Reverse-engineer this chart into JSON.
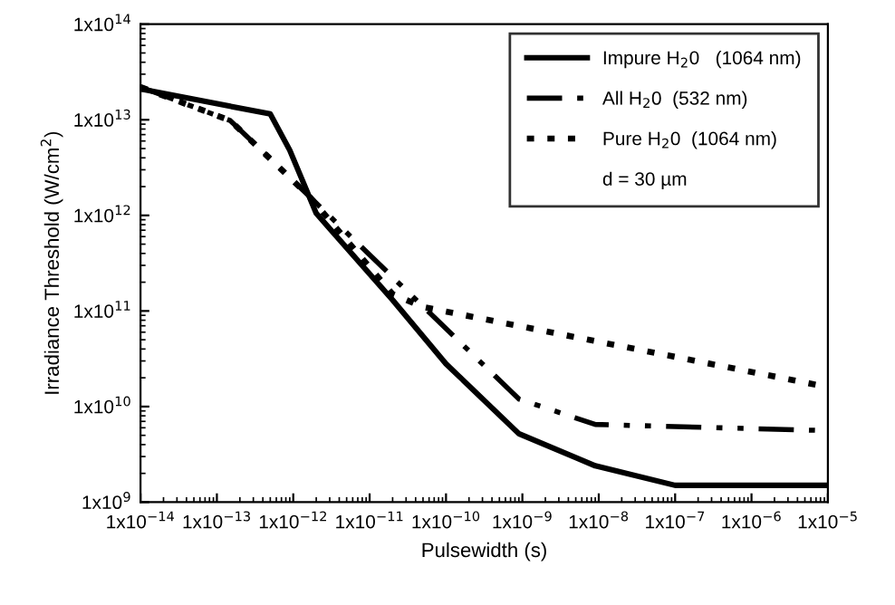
{
  "chart_data": {
    "type": "line",
    "xlabel": "Pulsewidth (s)",
    "ylabel": "Irradiance Threshold (W/cm$^{2}$)",
    "log": "xy",
    "grid": false,
    "legend": "top right",
    "marker": "none",
    "xlim": [
      1e-14,
      1e-05
    ],
    "xticks": [
      {
        "value": 1e-14,
        "label": "1x10$^{−14}$"
      },
      {
        "value": 1e-13,
        "label": "1x10$^{−13}$"
      },
      {
        "value": 1e-12,
        "label": "1x10$^{−12}$"
      },
      {
        "value": 1e-11,
        "label": "1x10$^{−11}$"
      },
      {
        "value": 1e-10,
        "label": "1x10$^{−10}$"
      },
      {
        "value": 1e-09,
        "label": "1x10$^{−9}$"
      },
      {
        "value": 1e-08,
        "label": "1x10$^{−8}$"
      },
      {
        "value": 1e-07,
        "label": "1x10$^{−7}$"
      },
      {
        "value": 1e-06,
        "label": "1x10$^{−6}$"
      },
      {
        "value": 1e-05,
        "label": "1x10$^{−5}$"
      }
    ],
    "ylim": [
      1000000000.0,
      100000000000000.0
    ],
    "yticks": [
      {
        "value": 1000000000.0,
        "label": "1x10$^{9}$"
      },
      {
        "value": 10000000000.0,
        "label": "1x10$^{10}$"
      },
      {
        "value": 100000000000.0,
        "label": "1x10$^{11}$"
      },
      {
        "value": 1000000000000.0,
        "label": "1x10$^{12}$"
      },
      {
        "value": 10000000000000.0,
        "label": "1x10$^{13}$"
      },
      {
        "value": 100000000000000.0,
        "label": "1x10$^{14}$"
      }
    ],
    "annotations": [
      "d = 30 µm"
    ],
    "series": [
      {
        "name": "Impure H$_{2}$0   (1064 nm)",
        "color": "#000000",
        "line_style": "solid",
        "x": [
          1e-14,
          5e-13,
          9e-13,
          2e-12,
          2e-11,
          1e-10,
          9e-10,
          9e-09,
          1e-07,
          1e-05
        ],
        "values": [
          21000000000000.0,
          11500000000000.0,
          4800000000000.0,
          1050000000000.0,
          130000000000.0,
          28000000000.0,
          5200000000.0,
          2400000000.0,
          1500000000.0,
          1500000000.0
        ]
      },
      {
        "name": "All H$_{2}$0  (532 nm)",
        "color": "#000000",
        "line_style": "dashdot",
        "x": [
          1e-14,
          1.5e-13,
          1.6e-12,
          2.5e-11,
          9e-10,
          9e-09,
          1e-05
        ],
        "values": [
          22000000000000.0,
          9800000000000.0,
          1600000000000.0,
          190000000000.0,
          12000000000.0,
          6500000000.0,
          5600000000.0
        ]
      },
      {
        "name": "Pure H$_{2}$0  (1064 nm)",
        "color": "#000000",
        "line_style": "dotted",
        "x": [
          1e-14,
          1.5e-13,
          1.6e-12,
          2e-11,
          5e-11,
          1e-05
        ],
        "values": [
          22000000000000.0,
          9800000000000.0,
          1600000000000.0,
          150000000000.0,
          110000000000.0,
          16000000000.0
        ]
      }
    ]
  }
}
